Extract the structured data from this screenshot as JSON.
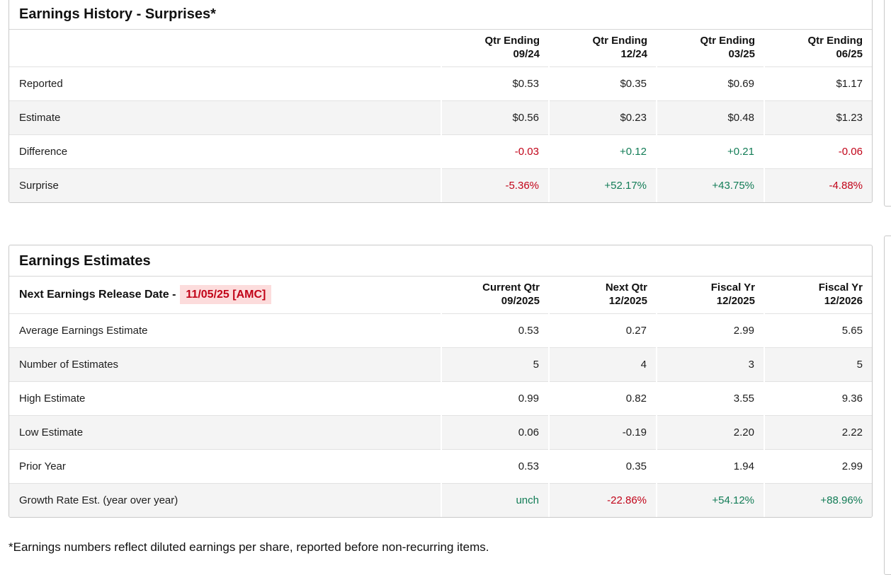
{
  "colors": {
    "positive": "#127c56",
    "negative": "#c10318",
    "highlight_bg": "#fcdcdc"
  },
  "surprises": {
    "title": "Earnings History - Surprises*",
    "columns": [
      {
        "line1": "Qtr Ending",
        "line2": "09/24"
      },
      {
        "line1": "Qtr Ending",
        "line2": "12/24"
      },
      {
        "line1": "Qtr Ending",
        "line2": "03/25"
      },
      {
        "line1": "Qtr Ending",
        "line2": "06/25"
      }
    ],
    "rows": [
      {
        "label": "Reported",
        "values": [
          {
            "text": "$0.53"
          },
          {
            "text": "$0.35"
          },
          {
            "text": "$0.69"
          },
          {
            "text": "$1.17"
          }
        ]
      },
      {
        "label": "Estimate",
        "values": [
          {
            "text": "$0.56"
          },
          {
            "text": "$0.23"
          },
          {
            "text": "$0.48"
          },
          {
            "text": "$1.23"
          }
        ]
      },
      {
        "label": "Difference",
        "values": [
          {
            "text": "-0.03",
            "tone": "negative"
          },
          {
            "text": "+0.12",
            "tone": "positive"
          },
          {
            "text": "+0.21",
            "tone": "positive"
          },
          {
            "text": "-0.06",
            "tone": "negative"
          }
        ]
      },
      {
        "label": "Surprise",
        "values": [
          {
            "text": "-5.36%",
            "tone": "negative"
          },
          {
            "text": "+52.17%",
            "tone": "positive"
          },
          {
            "text": "+43.75%",
            "tone": "positive"
          },
          {
            "text": "-4.88%",
            "tone": "negative"
          }
        ]
      }
    ]
  },
  "estimates": {
    "title": "Earnings Estimates",
    "release_label": "Next Earnings Release Date -",
    "release_date": "11/05/25 [AMC]",
    "columns": [
      {
        "line1": "Current Qtr",
        "line2": "09/2025"
      },
      {
        "line1": "Next Qtr",
        "line2": "12/2025"
      },
      {
        "line1": "Fiscal Yr",
        "line2": "12/2025"
      },
      {
        "line1": "Fiscal Yr",
        "line2": "12/2026"
      }
    ],
    "rows": [
      {
        "label": "Average Earnings Estimate",
        "values": [
          {
            "text": "0.53"
          },
          {
            "text": "0.27"
          },
          {
            "text": "2.99"
          },
          {
            "text": "5.65"
          }
        ]
      },
      {
        "label": "Number of Estimates",
        "values": [
          {
            "text": "5"
          },
          {
            "text": "4"
          },
          {
            "text": "3"
          },
          {
            "text": "5"
          }
        ]
      },
      {
        "label": "High Estimate",
        "values": [
          {
            "text": "0.99"
          },
          {
            "text": "0.82"
          },
          {
            "text": "3.55"
          },
          {
            "text": "9.36"
          }
        ]
      },
      {
        "label": "Low Estimate",
        "values": [
          {
            "text": "0.06"
          },
          {
            "text": "-0.19"
          },
          {
            "text": "2.20"
          },
          {
            "text": "2.22"
          }
        ]
      },
      {
        "label": "Prior Year",
        "values": [
          {
            "text": "0.53"
          },
          {
            "text": "0.35"
          },
          {
            "text": "1.94"
          },
          {
            "text": "2.99"
          }
        ]
      },
      {
        "label": "Growth Rate Est. (year over year)",
        "values": [
          {
            "text": "unch",
            "tone": "positive"
          },
          {
            "text": "-22.86%",
            "tone": "negative"
          },
          {
            "text": "+54.12%",
            "tone": "positive"
          },
          {
            "text": "+88.96%",
            "tone": "positive"
          }
        ]
      }
    ]
  },
  "footnote": "*Earnings numbers reflect diluted earnings per share, reported before non-recurring items."
}
